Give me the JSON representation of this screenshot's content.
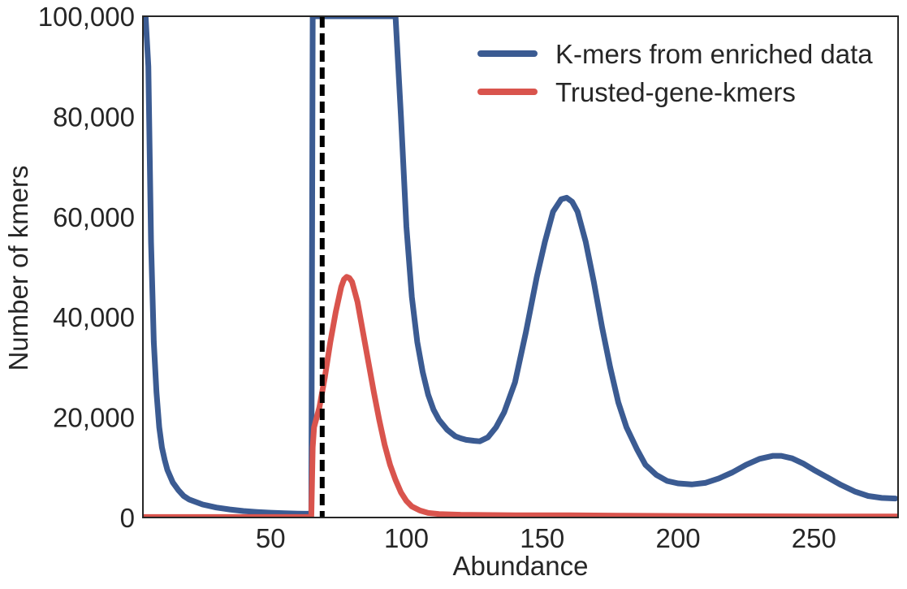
{
  "chart_data": {
    "type": "line",
    "xlabel": "Abundance",
    "ylabel": "Number of kmers",
    "xlim": [
      3,
      281
    ],
    "ylim": [
      0,
      100000
    ],
    "x_ticks": [
      50,
      100,
      150,
      200,
      250
    ],
    "y_ticks": [
      0,
      20000,
      40000,
      60000,
      80000,
      100000
    ],
    "x_tick_labels": [
      "50",
      "100",
      "150",
      "200",
      "250"
    ],
    "y_tick_labels": [
      "0",
      "20,000",
      "40,000",
      "60,000",
      "80,000",
      "100,000"
    ],
    "grid": false,
    "legend_position": "top-right",
    "threshold_line": {
      "x": 69,
      "style": "dashed",
      "color": "#000000"
    },
    "series": [
      {
        "name": "K-mers from enriched data",
        "color": "#3b5b92",
        "points": [
          [
            4,
            100000
          ],
          [
            5,
            90000
          ],
          [
            6,
            55000
          ],
          [
            7,
            35000
          ],
          [
            8,
            25000
          ],
          [
            9,
            18000
          ],
          [
            10,
            14000
          ],
          [
            11,
            11500
          ],
          [
            12,
            9500
          ],
          [
            14,
            7000
          ],
          [
            16,
            5500
          ],
          [
            18,
            4300
          ],
          [
            20,
            3600
          ],
          [
            25,
            2600
          ],
          [
            30,
            2000
          ],
          [
            35,
            1600
          ],
          [
            40,
            1300
          ],
          [
            45,
            1100
          ],
          [
            50,
            950
          ],
          [
            55,
            850
          ],
          [
            60,
            780
          ],
          [
            63,
            750
          ],
          [
            64,
            760
          ],
          [
            65,
            900
          ],
          [
            65.5,
            100000
          ],
          [
            96,
            100000
          ],
          [
            98,
            80000
          ],
          [
            100,
            58000
          ],
          [
            102,
            44000
          ],
          [
            104,
            35000
          ],
          [
            106,
            29000
          ],
          [
            108,
            24500
          ],
          [
            110,
            21500
          ],
          [
            112,
            19500
          ],
          [
            115,
            17500
          ],
          [
            118,
            16200
          ],
          [
            120,
            15800
          ],
          [
            122,
            15500
          ],
          [
            125,
            15300
          ],
          [
            127,
            15200
          ],
          [
            130,
            16000
          ],
          [
            133,
            18000
          ],
          [
            136,
            21000
          ],
          [
            140,
            27000
          ],
          [
            144,
            37000
          ],
          [
            148,
            48000
          ],
          [
            151,
            55000
          ],
          [
            154,
            61000
          ],
          [
            157,
            63500
          ],
          [
            159,
            63800
          ],
          [
            161,
            63000
          ],
          [
            163,
            61000
          ],
          [
            166,
            55000
          ],
          [
            169,
            47000
          ],
          [
            172,
            38000
          ],
          [
            175,
            30000
          ],
          [
            178,
            23000
          ],
          [
            181,
            18000
          ],
          [
            185,
            13500
          ],
          [
            188,
            10500
          ],
          [
            192,
            8500
          ],
          [
            196,
            7300
          ],
          [
            200,
            6800
          ],
          [
            205,
            6600
          ],
          [
            210,
            6900
          ],
          [
            215,
            7800
          ],
          [
            220,
            9000
          ],
          [
            225,
            10500
          ],
          [
            230,
            11700
          ],
          [
            235,
            12300
          ],
          [
            238,
            12300
          ],
          [
            242,
            11800
          ],
          [
            246,
            10800
          ],
          [
            250,
            9500
          ],
          [
            255,
            8000
          ],
          [
            260,
            6500
          ],
          [
            265,
            5200
          ],
          [
            270,
            4300
          ],
          [
            275,
            3900
          ],
          [
            280,
            3800
          ]
        ]
      },
      {
        "name": "Trusted-gene-kmers",
        "color": "#d9544d",
        "points": [
          [
            3,
            100
          ],
          [
            20,
            100
          ],
          [
            40,
            100
          ],
          [
            60,
            100
          ],
          [
            64,
            100
          ],
          [
            65,
            200
          ],
          [
            65.5,
            14000
          ],
          [
            66,
            18000
          ],
          [
            68,
            22000
          ],
          [
            70,
            28000
          ],
          [
            72,
            35000
          ],
          [
            74,
            41000
          ],
          [
            76,
            46000
          ],
          [
            77,
            47500
          ],
          [
            78,
            48000
          ],
          [
            79,
            47800
          ],
          [
            80,
            47000
          ],
          [
            82,
            43000
          ],
          [
            84,
            37000
          ],
          [
            86,
            31000
          ],
          [
            88,
            25000
          ],
          [
            90,
            19500
          ],
          [
            92,
            14500
          ],
          [
            94,
            10500
          ],
          [
            96,
            7500
          ],
          [
            98,
            5000
          ],
          [
            100,
            3300
          ],
          [
            102,
            2200
          ],
          [
            105,
            1400
          ],
          [
            108,
            900
          ],
          [
            112,
            700
          ],
          [
            120,
            550
          ],
          [
            140,
            450
          ],
          [
            160,
            450
          ],
          [
            180,
            350
          ],
          [
            200,
            300
          ],
          [
            230,
            250
          ],
          [
            260,
            200
          ],
          [
            281,
            200
          ]
        ]
      }
    ]
  }
}
